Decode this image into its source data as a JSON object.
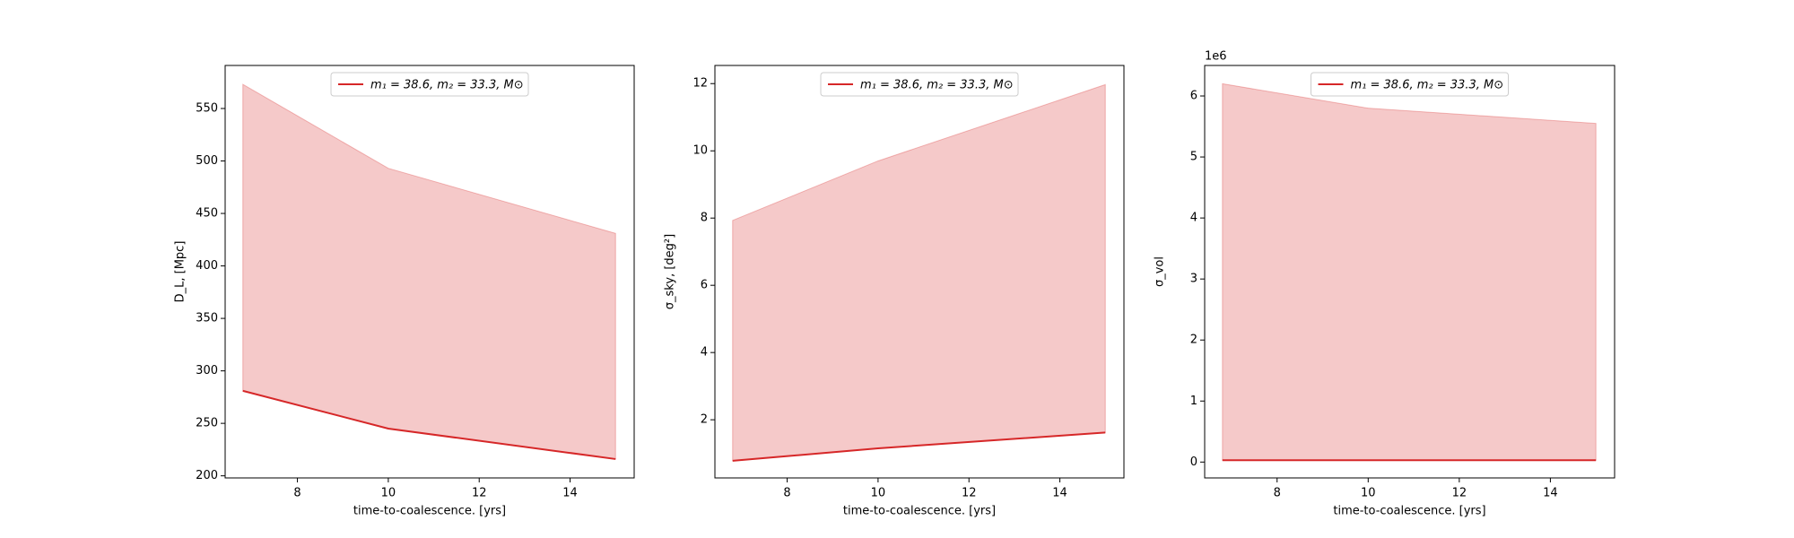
{
  "chart_data": [
    {
      "type": "line",
      "x_label": "time-to-coalescence. [yrs]",
      "y_label": "D_L, [Mpc]",
      "x": [
        6.8,
        10,
        15
      ],
      "xlim": [
        6.41,
        15.41
      ],
      "xticks": [
        8,
        10,
        12,
        14
      ],
      "ylim": [
        198,
        591
      ],
      "yticks": [
        200,
        250,
        300,
        350,
        400,
        450,
        500,
        550
      ],
      "series": [
        {
          "name": "m₁ = 38.6, m₂ = 33.3, M⊙",
          "color": "#d62728",
          "values": [
            281,
            245,
            216
          ],
          "band_upper": [
            573,
            493,
            431
          ]
        }
      ],
      "legend": "upper center"
    },
    {
      "type": "line",
      "x_label": "time-to-coalescence. [yrs]",
      "y_label": "σ_sky, [deg²]",
      "x": [
        6.8,
        10,
        15
      ],
      "xlim": [
        6.41,
        15.41
      ],
      "xticks": [
        8,
        10,
        12,
        14
      ],
      "ylim": [
        0.27,
        12.54
      ],
      "yticks": [
        2,
        4,
        6,
        8,
        10,
        12
      ],
      "series": [
        {
          "name": "m₁ = 38.6, m₂ = 33.3, M⊙",
          "color": "#d62728",
          "values": [
            0.78,
            1.15,
            1.62
          ],
          "band_upper": [
            7.93,
            9.7,
            11.97
          ]
        }
      ],
      "legend": "upper center"
    },
    {
      "type": "line",
      "x_label": "time-to-coalescence. [yrs]",
      "y_label": "σ_vol",
      "offset_label": "1e6",
      "x": [
        6.8,
        10,
        15
      ],
      "xlim": [
        6.41,
        15.41
      ],
      "xticks": [
        8,
        10,
        12,
        14
      ],
      "ylim": [
        -0.26,
        6.5
      ],
      "yticks": [
        0,
        1,
        2,
        3,
        4,
        5,
        6
      ],
      "series": [
        {
          "name": "m₁ = 38.6, m₂ = 33.3, M⊙",
          "color": "#d62728",
          "values": [
            0.03,
            0.03,
            0.03
          ],
          "band_upper": [
            6.2,
            5.8,
            5.55
          ]
        }
      ],
      "legend": "upper center"
    }
  ]
}
